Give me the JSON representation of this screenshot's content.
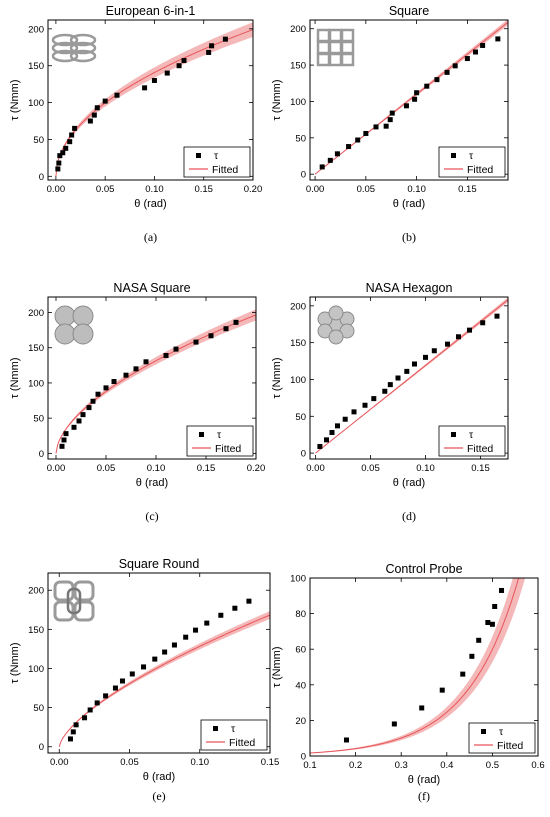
{
  "colors": {
    "fit_line": "#e8555a",
    "fit_band": "#f2a0a0",
    "marker": "#000000",
    "thumbnail": "#9a9a9a"
  },
  "chart_data": [
    {
      "type": "scatter",
      "title": "European 6-in-1",
      "caption": "(a)",
      "icon": "european-chainmail-thumbnail",
      "xlabel": "θ (rad)",
      "ylabel": "τ (Nmm)",
      "xlim": [
        -0.008,
        0.2
      ],
      "ylim": [
        -5,
        212
      ],
      "xticks": [
        "0.00",
        "0.05",
        "0.10",
        "0.15",
        "0.20"
      ],
      "xtick_values": [
        0,
        0.05,
        0.1,
        0.15,
        0.2
      ],
      "yticks": [
        "0",
        "50",
        "100",
        "150",
        "200"
      ],
      "ytick_values": [
        0,
        50,
        100,
        150,
        200
      ],
      "legend": {
        "position": "bottom-right",
        "marker_label": "τ",
        "line_label": "Fitted"
      },
      "points": [
        [
          0.002,
          10
        ],
        [
          0.003,
          18
        ],
        [
          0.004,
          28
        ],
        [
          0.007,
          32
        ],
        [
          0.01,
          38
        ],
        [
          0.014,
          47
        ],
        [
          0.016,
          56
        ],
        [
          0.019,
          65
        ],
        [
          0.035,
          75
        ],
        [
          0.039,
          83
        ],
        [
          0.042,
          93
        ],
        [
          0.05,
          102
        ],
        [
          0.062,
          110
        ],
        [
          0.09,
          120
        ],
        [
          0.1,
          130
        ],
        [
          0.113,
          140
        ],
        [
          0.125,
          150
        ],
        [
          0.13,
          157
        ],
        [
          0.155,
          168
        ],
        [
          0.158,
          177
        ],
        [
          0.172,
          186
        ]
      ],
      "fit": {
        "a": 445,
        "b": 0.5,
        "band": 0.05
      }
    },
    {
      "type": "scatter",
      "title": "Square",
      "caption": "(b)",
      "icon": "square-chainmail-thumbnail",
      "xlabel": "θ (rad)",
      "ylabel": "τ (Nmm)",
      "xlim": [
        -0.005,
        0.19
      ],
      "ylim": [
        -8,
        212
      ],
      "xticks": [
        "0.00",
        "0.05",
        "0.10",
        "0.15"
      ],
      "xtick_values": [
        0,
        0.05,
        0.1,
        0.15
      ],
      "yticks": [
        "0",
        "50",
        "100",
        "150",
        "200"
      ],
      "ytick_values": [
        0,
        50,
        100,
        150,
        200
      ],
      "legend": {
        "position": "bottom-right",
        "marker_label": "τ",
        "line_label": "Fitted"
      },
      "points": [
        [
          0.007,
          10
        ],
        [
          0.015,
          19
        ],
        [
          0.022,
          28
        ],
        [
          0.033,
          38
        ],
        [
          0.042,
          47
        ],
        [
          0.05,
          56
        ],
        [
          0.06,
          65
        ],
        [
          0.07,
          66
        ],
        [
          0.074,
          75
        ],
        [
          0.076,
          84
        ],
        [
          0.09,
          94
        ],
        [
          0.098,
          103
        ],
        [
          0.1,
          112
        ],
        [
          0.11,
          121
        ],
        [
          0.12,
          130
        ],
        [
          0.13,
          140
        ],
        [
          0.138,
          149
        ],
        [
          0.15,
          159
        ],
        [
          0.158,
          168
        ],
        [
          0.165,
          177
        ],
        [
          0.18,
          186
        ]
      ],
      "fit": {
        "a": 1100,
        "b": 1.0,
        "band": 0.02
      }
    },
    {
      "type": "scatter",
      "title": "NASA Square",
      "caption": "(c)",
      "icon": "nasa-square-thumbnail",
      "xlabel": "θ (rad)",
      "ylabel": "τ (Nmm)",
      "xlim": [
        -0.008,
        0.2
      ],
      "ylim": [
        -8,
        222
      ],
      "xticks": [
        "0.00",
        "0.05",
        "0.10",
        "0.15",
        "0.20"
      ],
      "xtick_values": [
        0,
        0.05,
        0.1,
        0.15,
        0.2
      ],
      "yticks": [
        "0",
        "50",
        "100",
        "150",
        "200"
      ],
      "ytick_values": [
        0,
        50,
        100,
        150,
        200
      ],
      "legend": {
        "position": "bottom-right",
        "marker_label": "τ",
        "line_label": "Fitted"
      },
      "points": [
        [
          0.006,
          10
        ],
        [
          0.008,
          19
        ],
        [
          0.01,
          28
        ],
        [
          0.018,
          37
        ],
        [
          0.023,
          46
        ],
        [
          0.027,
          55
        ],
        [
          0.033,
          65
        ],
        [
          0.037,
          74
        ],
        [
          0.042,
          84
        ],
        [
          0.05,
          93
        ],
        [
          0.058,
          102
        ],
        [
          0.07,
          111
        ],
        [
          0.08,
          120
        ],
        [
          0.09,
          130
        ],
        [
          0.11,
          139
        ],
        [
          0.12,
          148
        ],
        [
          0.14,
          158
        ],
        [
          0.155,
          167
        ],
        [
          0.17,
          177
        ],
        [
          0.18,
          186
        ]
      ],
      "fit": {
        "a": 500,
        "b": 0.58,
        "band": 0.04
      }
    },
    {
      "type": "scatter",
      "title": "NASA Hexagon",
      "caption": "(d)",
      "icon": "nasa-hexagon-thumbnail",
      "xlabel": "θ (rad)",
      "ylabel": "τ (Nmm)",
      "xlim": [
        -0.005,
        0.175
      ],
      "ylim": [
        -8,
        212
      ],
      "xticks": [
        "0.00",
        "0.05",
        "0.10",
        "0.15"
      ],
      "xtick_values": [
        0,
        0.05,
        0.1,
        0.15
      ],
      "yticks": [
        "0",
        "50",
        "100",
        "150",
        "200"
      ],
      "ytick_values": [
        0,
        50,
        100,
        150,
        200
      ],
      "legend": {
        "position": "bottom-right",
        "marker_label": "τ",
        "line_label": "Fitted"
      },
      "points": [
        [
          0.004,
          9
        ],
        [
          0.01,
          18
        ],
        [
          0.015,
          28
        ],
        [
          0.02,
          37
        ],
        [
          0.027,
          46
        ],
        [
          0.035,
          56
        ],
        [
          0.045,
          65
        ],
        [
          0.053,
          74
        ],
        [
          0.063,
          84
        ],
        [
          0.068,
          93
        ],
        [
          0.075,
          102
        ],
        [
          0.083,
          111
        ],
        [
          0.09,
          121
        ],
        [
          0.1,
          130
        ],
        [
          0.108,
          139
        ],
        [
          0.12,
          148
        ],
        [
          0.13,
          158
        ],
        [
          0.14,
          167
        ],
        [
          0.152,
          177
        ],
        [
          0.165,
          186
        ]
      ],
      "fit": {
        "a": 1190,
        "b": 1.0,
        "band": 0.015
      }
    },
    {
      "type": "scatter",
      "title": "Square Round",
      "caption": "(e)",
      "icon": "square-round-thumbnail",
      "xlabel": "θ (rad)",
      "ylabel": "τ (Nmm)",
      "xlim": [
        -0.008,
        0.15
      ],
      "ylim": [
        -8,
        222
      ],
      "xticks": [
        "0.00",
        "0.05",
        "0.10",
        "0.15"
      ],
      "xtick_values": [
        0,
        0.05,
        0.1,
        0.15
      ],
      "yticks": [
        "0",
        "50",
        "100",
        "150",
        "200"
      ],
      "ytick_values": [
        0,
        50,
        100,
        150,
        200
      ],
      "legend": {
        "position": "bottom-right",
        "marker_label": "τ",
        "line_label": "Fitted"
      },
      "points": [
        [
          0.008,
          10
        ],
        [
          0.01,
          19
        ],
        [
          0.012,
          28
        ],
        [
          0.018,
          37
        ],
        [
          0.022,
          47
        ],
        [
          0.027,
          56
        ],
        [
          0.033,
          65
        ],
        [
          0.04,
          75
        ],
        [
          0.045,
          84
        ],
        [
          0.052,
          93
        ],
        [
          0.06,
          102
        ],
        [
          0.068,
          112
        ],
        [
          0.075,
          121
        ],
        [
          0.082,
          130
        ],
        [
          0.09,
          140
        ],
        [
          0.097,
          149
        ],
        [
          0.105,
          158
        ],
        [
          0.115,
          168
        ],
        [
          0.125,
          177
        ],
        [
          0.135,
          186
        ]
      ],
      "fit": {
        "a": 600,
        "b": 0.67,
        "band": 0.03
      }
    },
    {
      "type": "scatter",
      "title": "Control Probe",
      "caption": "(f)",
      "icon": null,
      "xlabel": "θ (rad)",
      "ylabel": "τ (Nmm)",
      "xlim": [
        0.1,
        0.6
      ],
      "ylim": [
        0,
        100
      ],
      "xticks": [
        "0.1",
        "0.2",
        "0.3",
        "0.4",
        "0.5",
        "0.6"
      ],
      "xtick_values": [
        0.1,
        0.2,
        0.3,
        0.4,
        0.5,
        0.6
      ],
      "yticks": [
        "0",
        "20",
        "40",
        "60",
        "80",
        "100"
      ],
      "ytick_values": [
        0,
        20,
        40,
        60,
        80,
        100
      ],
      "legend": {
        "position": "bottom-right",
        "marker_label": "τ",
        "line_label": "Fitted"
      },
      "points": [
        [
          0.18,
          9
        ],
        [
          0.285,
          18
        ],
        [
          0.345,
          27
        ],
        [
          0.39,
          37
        ],
        [
          0.435,
          46
        ],
        [
          0.455,
          56
        ],
        [
          0.47,
          65
        ],
        [
          0.49,
          75
        ],
        [
          0.5,
          74
        ],
        [
          0.505,
          84
        ],
        [
          0.52,
          93
        ]
      ],
      "fit": {
        "model": "exp",
        "a": 0.7,
        "k": 8.9,
        "band": 0.12
      }
    }
  ]
}
